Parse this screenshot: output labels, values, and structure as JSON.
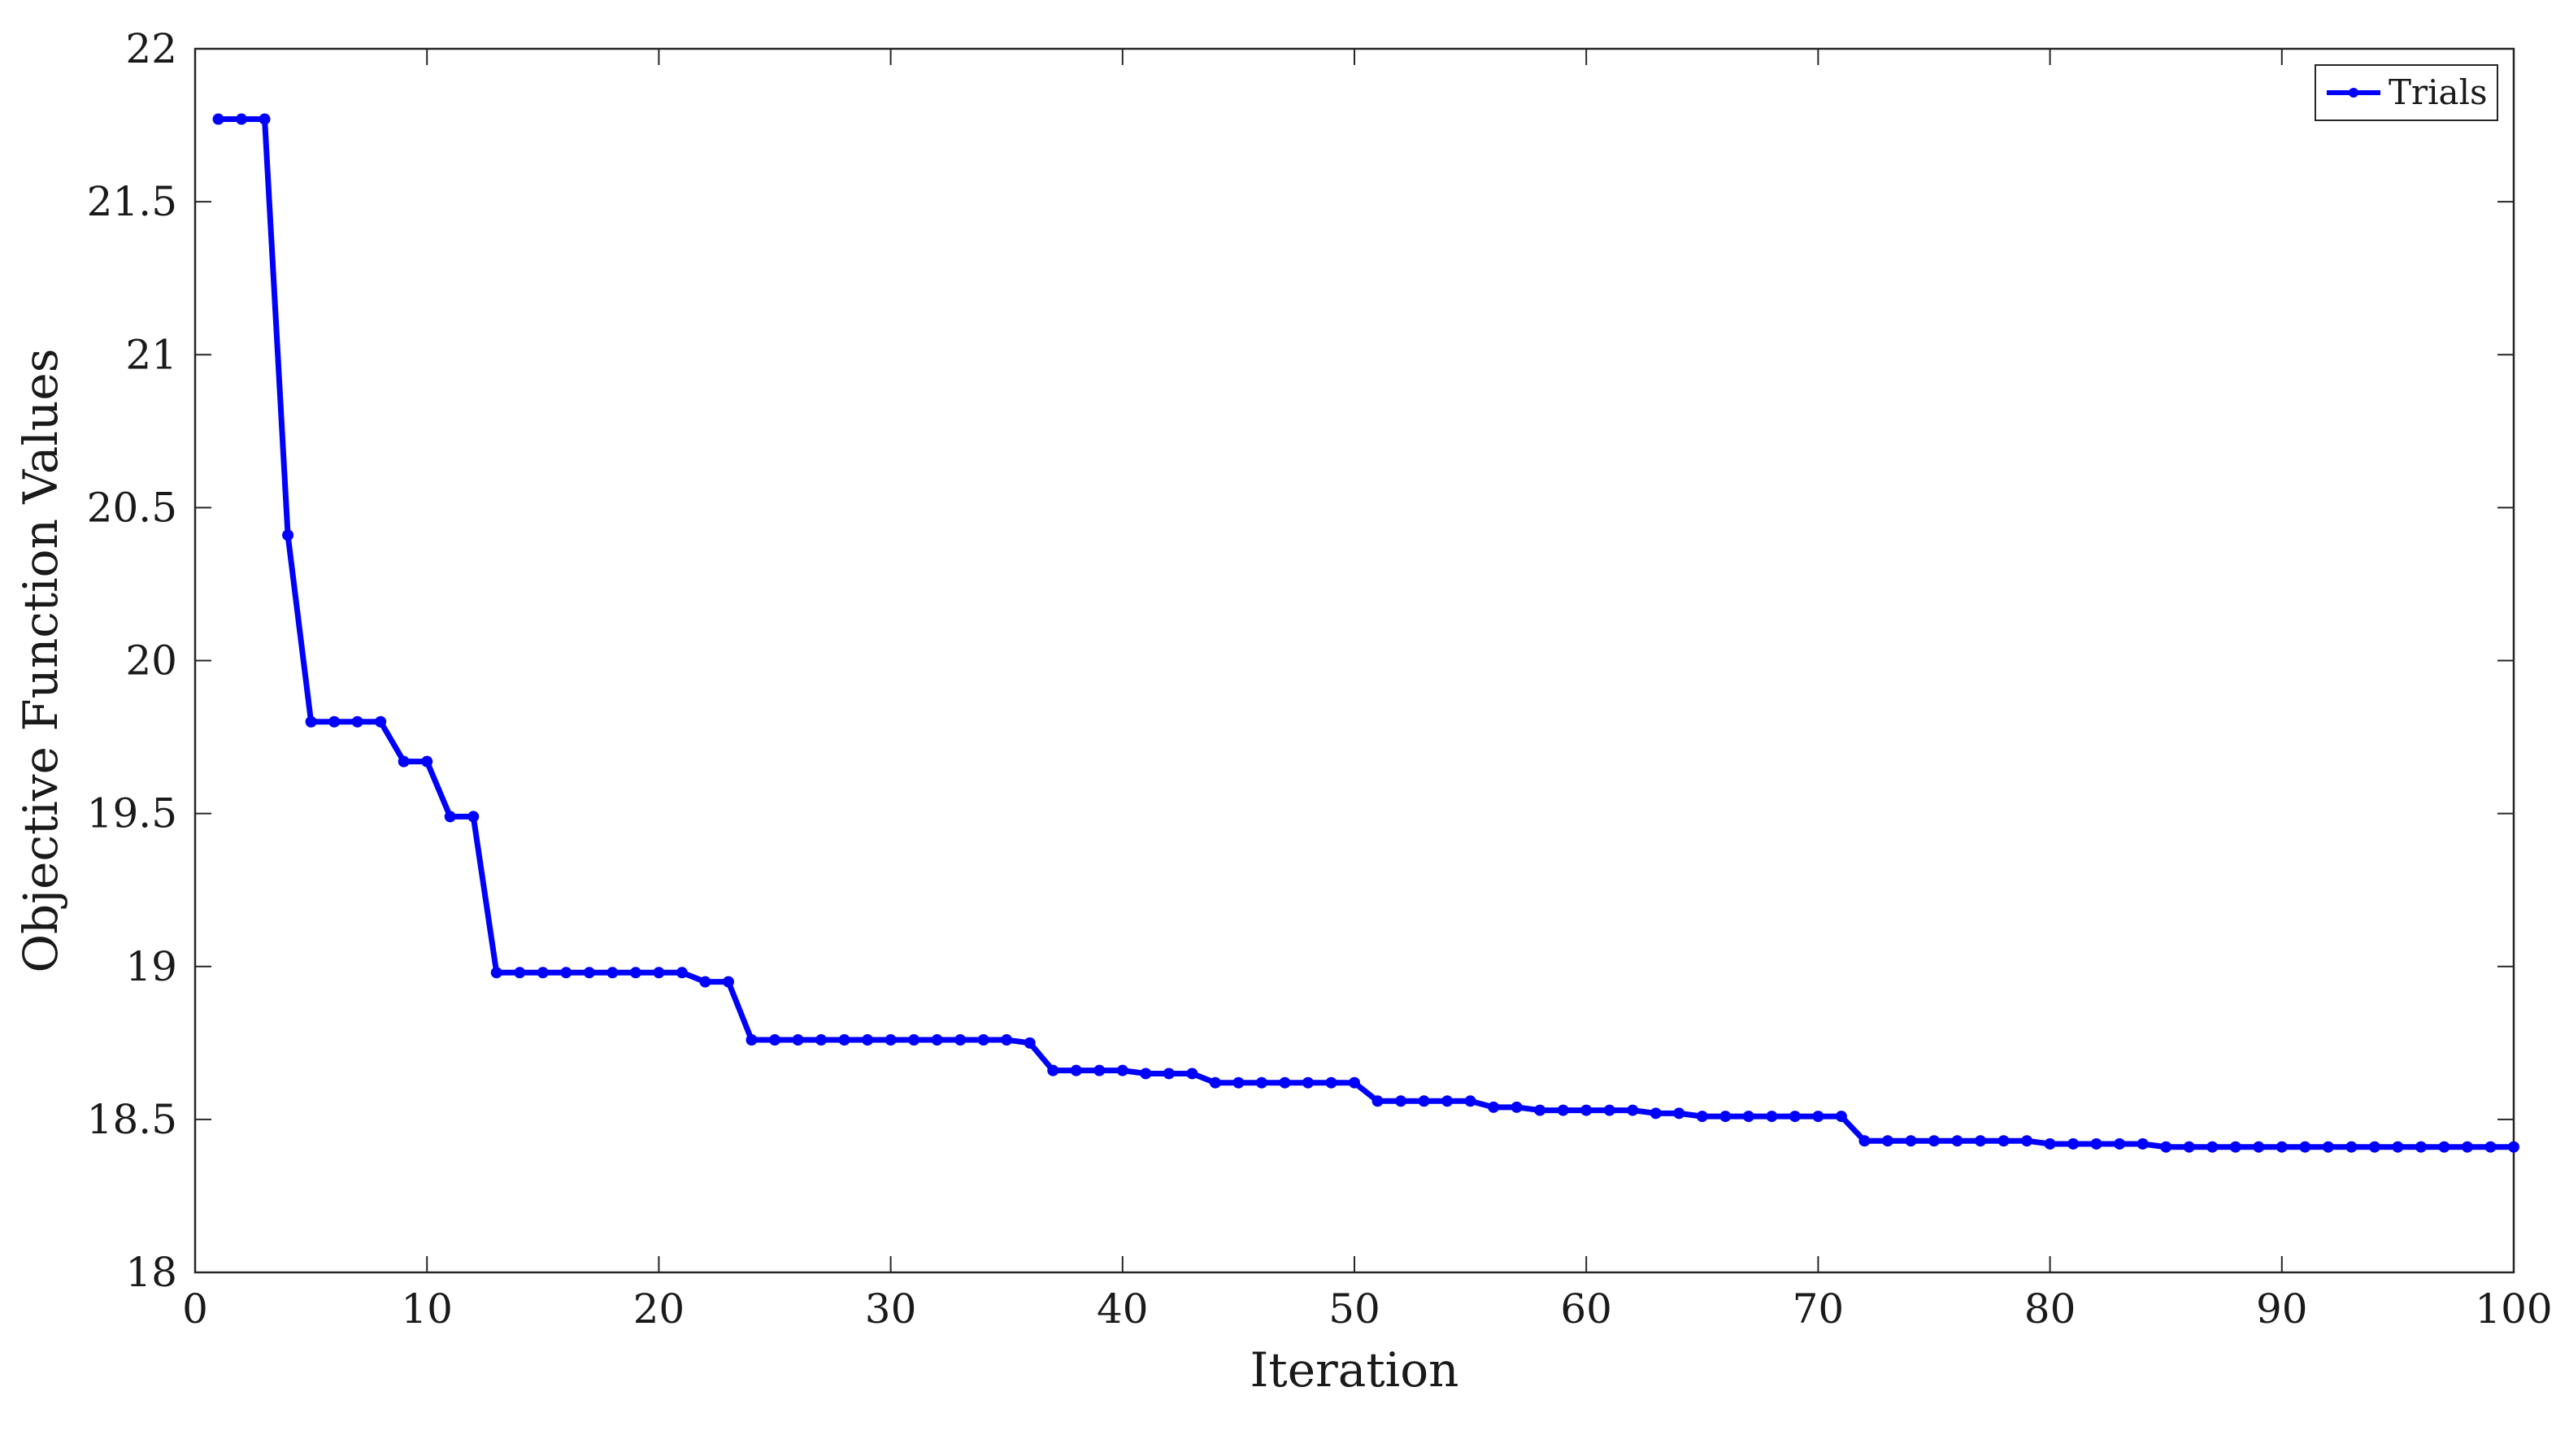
{
  "chart_data": {
    "type": "line",
    "xlabel": "Iteration",
    "ylabel": "Objective Function Values",
    "xlim": [
      0,
      100
    ],
    "ylim": [
      18,
      22
    ],
    "xticks": [
      0,
      10,
      20,
      30,
      40,
      50,
      60,
      70,
      80,
      90,
      100
    ],
    "yticks": [
      18,
      18.5,
      19,
      19.5,
      20,
      20.5,
      21,
      21.5,
      22
    ],
    "xtick_labels": [
      "0",
      "10",
      "20",
      "30",
      "40",
      "50",
      "60",
      "70",
      "80",
      "90",
      "100"
    ],
    "ytick_labels": [
      "18",
      "18.5",
      "19",
      "19.5",
      "20",
      "20.5",
      "21",
      "21.5",
      "22"
    ],
    "grid": false,
    "legend": {
      "placement": "top-right"
    },
    "series": [
      {
        "name": "Trials",
        "color": "#0000ff",
        "marker": "dot",
        "x": [
          1,
          2,
          3,
          4,
          5,
          6,
          7,
          8,
          9,
          10,
          11,
          12,
          13,
          14,
          15,
          16,
          17,
          18,
          19,
          20,
          21,
          22,
          23,
          24,
          25,
          26,
          27,
          28,
          29,
          30,
          31,
          32,
          33,
          34,
          35,
          36,
          37,
          38,
          39,
          40,
          41,
          42,
          43,
          44,
          45,
          46,
          47,
          48,
          49,
          50,
          51,
          52,
          53,
          54,
          55,
          56,
          57,
          58,
          59,
          60,
          61,
          62,
          63,
          64,
          65,
          66,
          67,
          68,
          69,
          70,
          71,
          72,
          73,
          74,
          75,
          76,
          77,
          78,
          79,
          80,
          81,
          82,
          83,
          84,
          85,
          86,
          87,
          88,
          89,
          90,
          91,
          92,
          93,
          94,
          95,
          96,
          97,
          98,
          99,
          100
        ],
        "y": [
          21.77,
          21.77,
          21.77,
          20.41,
          19.8,
          19.8,
          19.8,
          19.8,
          19.67,
          19.67,
          19.49,
          19.49,
          18.98,
          18.98,
          18.98,
          18.98,
          18.98,
          18.98,
          18.98,
          18.98,
          18.98,
          18.95,
          18.95,
          18.76,
          18.76,
          18.76,
          18.76,
          18.76,
          18.76,
          18.76,
          18.76,
          18.76,
          18.76,
          18.76,
          18.76,
          18.75,
          18.66,
          18.66,
          18.66,
          18.66,
          18.65,
          18.65,
          18.65,
          18.62,
          18.62,
          18.62,
          18.62,
          18.62,
          18.62,
          18.62,
          18.56,
          18.56,
          18.56,
          18.56,
          18.56,
          18.54,
          18.54,
          18.53,
          18.53,
          18.53,
          18.53,
          18.53,
          18.52,
          18.52,
          18.51,
          18.51,
          18.51,
          18.51,
          18.51,
          18.51,
          18.51,
          18.43,
          18.43,
          18.43,
          18.43,
          18.43,
          18.43,
          18.43,
          18.43,
          18.42,
          18.42,
          18.42,
          18.42,
          18.42,
          18.41,
          18.41,
          18.41,
          18.41,
          18.41,
          18.41,
          18.41,
          18.41,
          18.41,
          18.41,
          18.41,
          18.41,
          18.41,
          18.41,
          18.41,
          18.41
        ]
      }
    ]
  }
}
